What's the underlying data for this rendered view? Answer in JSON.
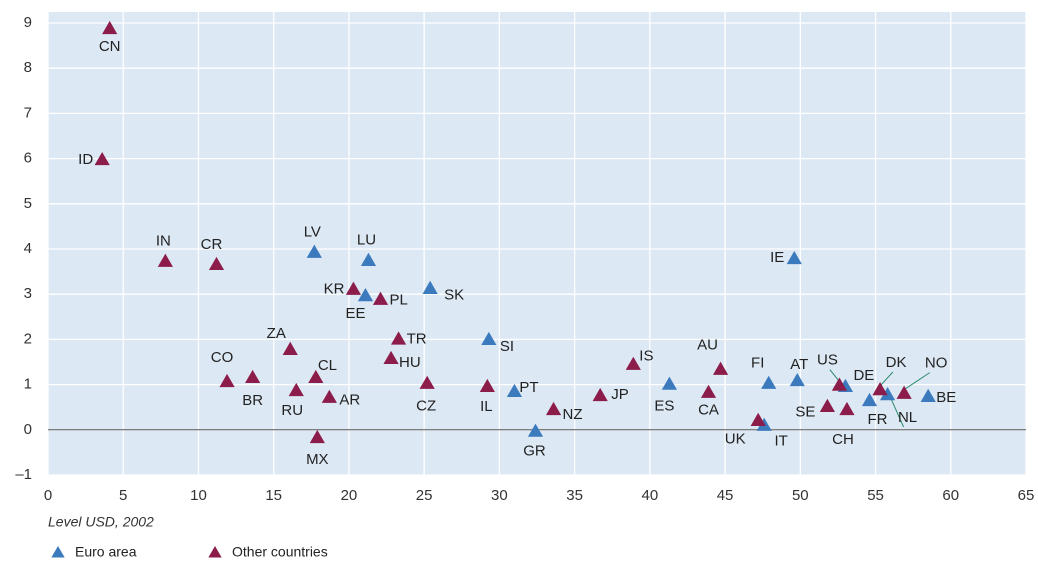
{
  "chart_data": {
    "type": "scatter",
    "x_label": "Level USD, 2002",
    "xlim": [
      0,
      65
    ],
    "xticks": [
      0,
      5,
      10,
      15,
      20,
      25,
      30,
      35,
      40,
      45,
      50,
      55,
      60,
      65
    ],
    "ylim": [
      -1,
      9
    ],
    "yticks": [
      {
        "value": -1,
        "label": "–1"
      },
      0,
      1,
      2,
      3,
      4,
      5,
      6,
      7,
      8,
      9
    ],
    "grid": true,
    "legend": "bottom-left",
    "series": [
      {
        "name": "Euro area",
        "color": "#3b7bbd",
        "labels": [
          "LV",
          "LU",
          "EE",
          "SK",
          "SI",
          "PT",
          "GR",
          "ES",
          "FI",
          "AT",
          "IE",
          "IT",
          "DE",
          "FR",
          "NL",
          "BE"
        ],
        "x": [
          17.7,
          21.3,
          21.1,
          25.4,
          29.3,
          31.0,
          32.4,
          41.3,
          47.9,
          49.8,
          49.6,
          47.6,
          53.0,
          54.6,
          55.8,
          58.5
        ],
        "y": [
          3.92,
          3.74,
          2.96,
          3.12,
          1.99,
          0.84,
          -0.04,
          1.0,
          1.02,
          1.08,
          3.78,
          0.09,
          0.95,
          0.64,
          0.77,
          0.73
        ]
      },
      {
        "name": "Other countries",
        "color": "#8c1d4b",
        "labels": [
          "CN",
          "ID",
          "IN",
          "CR",
          "KR",
          "PL",
          "TR",
          "HU",
          "ZA",
          "CO",
          "BR",
          "RU",
          "CL",
          "AR",
          "MX",
          "CZ",
          "IL",
          "NZ",
          "JP",
          "IS",
          "AU",
          "CA",
          "UK",
          "SE",
          "CH",
          "DK",
          "NO",
          "US"
        ],
        "x": [
          4.1,
          3.6,
          7.8,
          11.2,
          20.3,
          22.1,
          23.3,
          22.8,
          16.1,
          11.9,
          13.6,
          16.5,
          17.8,
          18.7,
          17.9,
          25.2,
          29.2,
          33.6,
          36.7,
          38.9,
          44.7,
          43.9,
          47.2,
          51.8,
          53.1,
          55.3,
          56.9,
          52.6
        ],
        "y": [
          8.87,
          5.97,
          3.72,
          3.65,
          3.1,
          2.88,
          2.0,
          1.57,
          1.77,
          1.06,
          1.15,
          0.86,
          1.15,
          0.71,
          -0.18,
          1.02,
          0.95,
          0.44,
          0.75,
          1.44,
          1.33,
          0.82,
          0.2,
          0.51,
          0.44,
          0.88,
          0.8,
          0.98
        ]
      }
    ]
  }
}
